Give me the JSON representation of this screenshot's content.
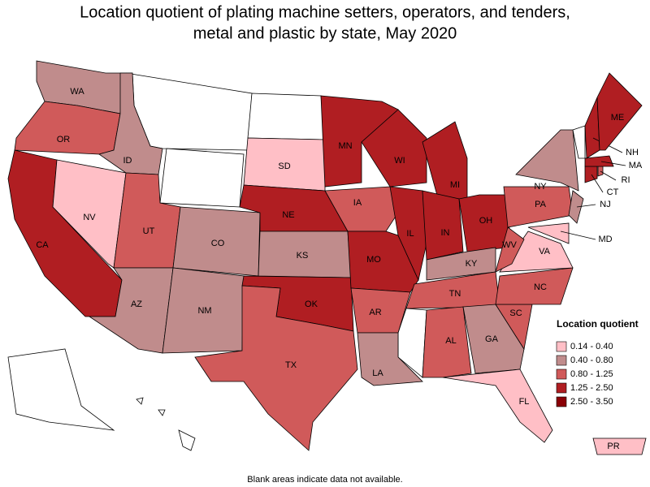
{
  "title": [
    "Location quotient of plating machine setters, operators, and tenders,",
    "metal and plastic by state, May 2020"
  ],
  "legend": {
    "title": "Location quotient",
    "items": [
      {
        "label": "0.14 - 0.40",
        "color": "#ffbfc6"
      },
      {
        "label": "0.40 - 0.80",
        "color": "#c08c8c"
      },
      {
        "label": "0.80 - 1.25",
        "color": "#d05a5a"
      },
      {
        "label": "1.25 - 2.50",
        "color": "#b01e22"
      },
      {
        "label": "2.50 - 3.50",
        "color": "#8a0006"
      }
    ]
  },
  "states": [
    {
      "abbr": "WA",
      "class": 1
    },
    {
      "abbr": "OR",
      "class": 2
    },
    {
      "abbr": "CA",
      "class": 3
    },
    {
      "abbr": "NV",
      "class": 0
    },
    {
      "abbr": "ID",
      "class": 1
    },
    {
      "abbr": "UT",
      "class": 2
    },
    {
      "abbr": "AZ",
      "class": 1
    },
    {
      "abbr": "CO",
      "class": 1
    },
    {
      "abbr": "NM",
      "class": 1
    },
    {
      "abbr": "SD",
      "class": 0
    },
    {
      "abbr": "NE",
      "class": 3
    },
    {
      "abbr": "KS",
      "class": 1
    },
    {
      "abbr": "OK",
      "class": 3
    },
    {
      "abbr": "TX",
      "class": 2
    },
    {
      "abbr": "MN",
      "class": 3
    },
    {
      "abbr": "IA",
      "class": 2
    },
    {
      "abbr": "MO",
      "class": 3
    },
    {
      "abbr": "AR",
      "class": 2
    },
    {
      "abbr": "LA",
      "class": 1
    },
    {
      "abbr": "WI",
      "class": 3
    },
    {
      "abbr": "IL",
      "class": 3
    },
    {
      "abbr": "MI",
      "class": 3
    },
    {
      "abbr": "IN",
      "class": 3
    },
    {
      "abbr": "OH",
      "class": 3
    },
    {
      "abbr": "KY",
      "class": 1
    },
    {
      "abbr": "TN",
      "class": 2
    },
    {
      "abbr": "AL",
      "class": 2
    },
    {
      "abbr": "GA",
      "class": 1
    },
    {
      "abbr": "FL",
      "class": 0
    },
    {
      "abbr": "SC",
      "class": 2
    },
    {
      "abbr": "NC",
      "class": 2
    },
    {
      "abbr": "VA",
      "class": 0
    },
    {
      "abbr": "WV",
      "class": 2
    },
    {
      "abbr": "MD",
      "class": 0
    },
    {
      "abbr": "PA",
      "class": 2
    },
    {
      "abbr": "NY",
      "class": 1
    },
    {
      "abbr": "NJ",
      "class": 1
    },
    {
      "abbr": "CT",
      "class": 3
    },
    {
      "abbr": "RI",
      "class": 2
    },
    {
      "abbr": "MA",
      "class": 3
    },
    {
      "abbr": "NH",
      "class": 3
    },
    {
      "abbr": "ME",
      "class": 3
    },
    {
      "abbr": "PR",
      "class": 0
    }
  ],
  "footnote": "Blank areas indicate data not available."
}
